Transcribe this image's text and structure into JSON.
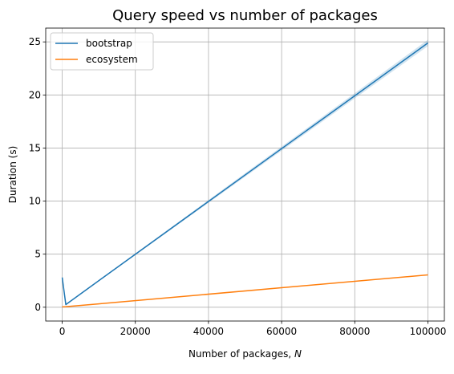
{
  "chart_data": {
    "type": "line",
    "title": "Query speed vs number of packages",
    "xlabel": "Number of packages, ",
    "xlabel_var": "N",
    "ylabel": "Duration (s)",
    "xlim": [
      -4500,
      104500
    ],
    "ylim": [
      -1.3,
      26.3
    ],
    "xticks": [
      0,
      20000,
      40000,
      60000,
      80000,
      100000
    ],
    "xtick_labels": [
      "0",
      "20000",
      "40000",
      "60000",
      "80000",
      "100000"
    ],
    "yticks": [
      0,
      5,
      10,
      15,
      20,
      25
    ],
    "ytick_labels": [
      "0",
      "5",
      "10",
      "15",
      "20",
      "25"
    ],
    "grid": true,
    "legend_position": "upper-left",
    "series": [
      {
        "name": "bootstrap",
        "color": "#1f77b4",
        "x": [
          10,
          1000,
          10000,
          100000
        ],
        "y": [
          2.8,
          0.25,
          2.5,
          24.9
        ],
        "band": [
          0,
          0,
          0.05,
          0.3
        ]
      },
      {
        "name": "ecosystem",
        "color": "#ff7f0e",
        "x": [
          10,
          1000,
          10000,
          100000
        ],
        "y": [
          0.03,
          0.05,
          0.32,
          3.05
        ],
        "band": [
          0,
          0,
          0,
          0
        ]
      }
    ]
  }
}
